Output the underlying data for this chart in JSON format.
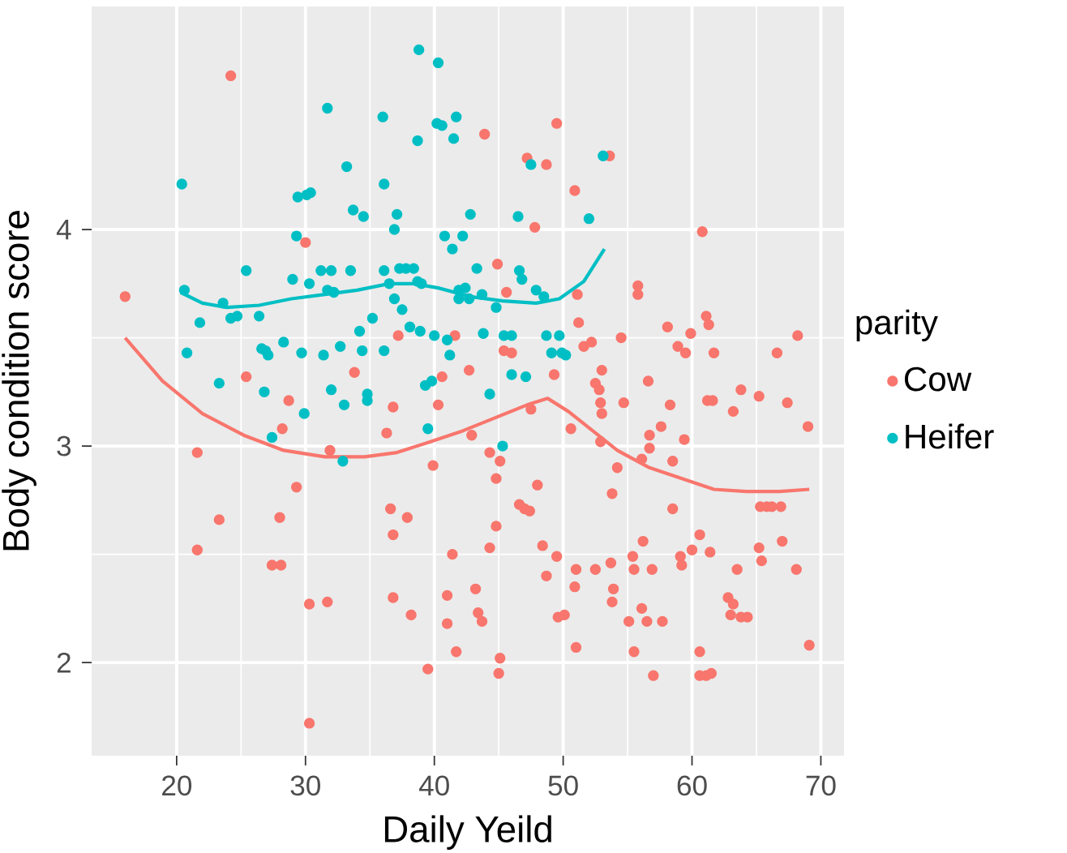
{
  "chart_data": {
    "type": "scatter",
    "xlabel": "Daily Yeild",
    "ylabel": "Body condition score",
    "legend_title": "parity",
    "legend": "right",
    "grid": true,
    "xlim": [
      13.4,
      71.8
    ],
    "ylim": [
      1.57,
      5.03
    ],
    "xticks": [
      20,
      30,
      40,
      50,
      60,
      70
    ],
    "yticks": [
      2,
      3,
      4
    ],
    "series": [
      {
        "name": "Cow",
        "marker": "circle",
        "color": "#f8766d",
        "x": [
          16.0,
          24.2,
          21.6,
          21.6,
          23.3,
          25.4,
          27.4,
          28.1,
          28.0,
          28.2,
          28.7,
          29.3,
          30.0,
          30.3,
          30.3,
          31.7,
          31.9,
          33.8,
          36.3,
          36.6,
          36.8,
          36.8,
          36.8,
          37.9,
          38.2,
          37.2,
          39.5,
          39.9,
          40.3,
          40.6,
          41.0,
          41.0,
          41.4,
          41.7,
          41.6,
          42.7,
          42.9,
          43.2,
          43.4,
          43.7,
          43.9,
          44.3,
          44.3,
          45.0,
          45.1,
          44.8,
          44.8,
          44.9,
          45.1,
          45.4,
          46.0,
          46.6,
          47.0,
          47.4,
          47.2,
          47.5,
          47.8,
          48.0,
          48.4,
          48.7,
          48.7,
          49.5,
          49.5,
          49.3,
          49.6,
          50.1,
          50.6,
          50.9,
          50.9,
          51.0,
          51.0,
          51.1,
          51.2,
          51.6,
          52.2,
          52.5,
          52.8,
          52.9,
          53.0,
          52.9,
          52.5,
          53.0,
          53.6,
          53.7,
          53.9,
          53.8,
          53.8,
          54.2,
          54.5,
          54.7,
          55.1,
          55.4,
          55.5,
          55.5,
          55.8,
          55.8,
          56.1,
          56.1,
          56.2,
          56.5,
          56.7,
          56.6,
          57.0,
          56.7,
          56.9,
          57.7,
          57.6,
          58.1,
          58.3,
          58.5,
          58.5,
          58.9,
          59.4,
          59.1,
          59.2,
          59.5,
          59.9,
          60.0,
          60.6,
          60.6,
          60.6,
          60.8,
          61.1,
          61.5,
          61.1,
          61.3,
          61.4,
          61.2,
          61.6,
          61.7,
          62.8,
          63.2,
          63.0,
          63.8,
          64.3,
          63.2,
          63.5,
          63.8,
          65.2,
          65.2,
          65.4,
          65.3,
          65.8,
          66.2,
          66.6,
          66.9,
          67.0,
          67.4,
          68.2,
          68.1,
          69.0,
          69.1,
          45.6
        ],
        "values": [
          3.69,
          4.71,
          2.52,
          2.97,
          2.66,
          3.32,
          2.45,
          2.45,
          2.67,
          3.08,
          3.21,
          2.81,
          3.94,
          1.72,
          2.27,
          2.28,
          2.98,
          3.34,
          3.06,
          2.71,
          2.59,
          2.3,
          3.18,
          2.67,
          2.22,
          3.51,
          1.97,
          2.91,
          3.19,
          3.32,
          2.31,
          2.18,
          2.5,
          2.05,
          3.51,
          3.35,
          3.05,
          2.34,
          2.23,
          2.19,
          4.44,
          2.53,
          2.97,
          1.95,
          2.02,
          2.85,
          2.63,
          3.84,
          2.93,
          3.44,
          3.43,
          2.73,
          2.71,
          2.7,
          4.33,
          3.17,
          4.01,
          2.82,
          2.54,
          4.3,
          2.4,
          4.49,
          2.49,
          3.33,
          2.21,
          2.22,
          3.08,
          4.18,
          2.35,
          2.07,
          2.43,
          3.7,
          3.57,
          3.46,
          3.48,
          3.29,
          3.26,
          3.2,
          3.15,
          3.02,
          2.43,
          3.35,
          4.34,
          2.46,
          2.34,
          2.28,
          2.78,
          2.9,
          3.5,
          3.2,
          2.19,
          2.49,
          2.05,
          2.43,
          3.74,
          3.7,
          2.25,
          2.94,
          2.56,
          2.19,
          3.05,
          3.3,
          1.94,
          2.99,
          2.43,
          2.19,
          3.09,
          3.55,
          3.19,
          2.71,
          2.93,
          3.46,
          3.03,
          2.49,
          2.45,
          3.43,
          3.52,
          2.52,
          2.05,
          2.59,
          1.94,
          3.99,
          1.94,
          1.95,
          3.6,
          3.56,
          2.51,
          3.21,
          3.21,
          3.43,
          2.3,
          2.27,
          2.22,
          2.21,
          2.21,
          3.16,
          2.43,
          3.26,
          2.53,
          3.23,
          2.47,
          2.72,
          2.72,
          2.72,
          3.43,
          2.72,
          2.56,
          3.2,
          3.51,
          2.43,
          3.09,
          2.08,
          3.71
        ]
      },
      {
        "name": "Heifer",
        "marker": "circle",
        "color": "#00bfc4",
        "x": [
          20.4,
          20.6,
          20.8,
          21.8,
          23.3,
          23.6,
          24.2,
          24.7,
          25.4,
          26.4,
          26.6,
          26.9,
          27.1,
          26.8,
          27.4,
          28.3,
          29.0,
          29.3,
          29.4,
          29.9,
          29.7,
          30.1,
          30.4,
          30.3,
          31.2,
          31.4,
          31.7,
          31.7,
          32.0,
          32.0,
          32.2,
          33.0,
          32.9,
          32.7,
          33.2,
          33.5,
          33.7,
          34.2,
          34.4,
          34.5,
          34.8,
          34.8,
          35.2,
          36.0,
          36.1,
          36.1,
          36.1,
          36.5,
          36.9,
          36.9,
          37.1,
          37.3,
          37.5,
          37.8,
          38.1,
          38.4,
          38.7,
          38.8,
          38.7,
          38.9,
          39.0,
          39.3,
          39.5,
          39.8,
          40.0,
          40.3,
          40.2,
          40.6,
          40.8,
          41.0,
          41.2,
          41.4,
          41.5,
          41.7,
          41.9,
          41.9,
          42.2,
          42.4,
          42.7,
          42.8,
          43.3,
          43.7,
          43.8,
          44.3,
          44.8,
          45.3,
          45.4,
          46.0,
          46.0,
          46.5,
          46.6,
          46.8,
          47.1,
          47.5,
          47.9,
          48.5,
          48.7,
          49.1,
          49.7,
          49.9,
          50.2,
          53.1,
          52.0
        ],
        "values": [
          4.21,
          3.72,
          3.43,
          3.57,
          3.29,
          3.66,
          3.59,
          3.6,
          3.81,
          3.6,
          3.45,
          3.44,
          3.42,
          3.25,
          3.04,
          3.48,
          3.77,
          3.97,
          4.15,
          3.15,
          3.43,
          4.16,
          4.17,
          3.75,
          3.81,
          3.42,
          3.72,
          4.56,
          3.81,
          3.26,
          3.71,
          3.19,
          2.93,
          3.46,
          4.29,
          3.81,
          4.09,
          3.53,
          3.44,
          4.06,
          3.24,
          3.21,
          3.59,
          4.52,
          3.44,
          4.21,
          3.81,
          3.75,
          3.68,
          4.0,
          4.07,
          3.82,
          3.63,
          3.82,
          3.55,
          3.82,
          4.41,
          4.83,
          3.76,
          3.53,
          3.75,
          3.28,
          3.08,
          3.3,
          3.51,
          4.77,
          4.49,
          4.48,
          3.97,
          3.49,
          3.42,
          3.91,
          4.42,
          4.52,
          3.68,
          3.72,
          3.97,
          3.73,
          3.68,
          4.07,
          3.82,
          3.7,
          3.52,
          3.24,
          3.64,
          3.0,
          3.51,
          3.51,
          3.33,
          4.06,
          3.81,
          3.77,
          3.32,
          4.3,
          3.72,
          3.69,
          3.51,
          3.43,
          3.51,
          3.43,
          3.42,
          4.34,
          4.05
        ]
      },
      {
        "type": "line",
        "color": "#f8766d",
        "x": [
          16.0,
          18.9,
          22.0,
          25.2,
          28.3,
          31.5,
          34.6,
          37.1,
          39.7,
          42.2,
          44.7,
          47.2,
          48.8,
          50.4,
          52.3,
          54.2,
          56.7,
          59.2,
          61.7,
          64.2,
          66.8,
          69.1
        ],
        "values": [
          3.5,
          3.3,
          3.15,
          3.05,
          2.98,
          2.95,
          2.95,
          2.97,
          3.02,
          3.07,
          3.13,
          3.19,
          3.22,
          3.16,
          3.07,
          2.98,
          2.9,
          2.85,
          2.8,
          2.79,
          2.79,
          2.8
        ]
      },
      {
        "type": "line",
        "color": "#00bfc4",
        "x": [
          20.3,
          22.0,
          23.9,
          26.4,
          28.9,
          31.5,
          34.0,
          36.5,
          38.4,
          40.3,
          42.8,
          45.3,
          47.9,
          49.7,
          51.6,
          53.2
        ],
        "values": [
          3.71,
          3.66,
          3.64,
          3.65,
          3.68,
          3.7,
          3.72,
          3.75,
          3.75,
          3.73,
          3.69,
          3.67,
          3.66,
          3.68,
          3.76,
          3.91
        ]
      }
    ]
  }
}
